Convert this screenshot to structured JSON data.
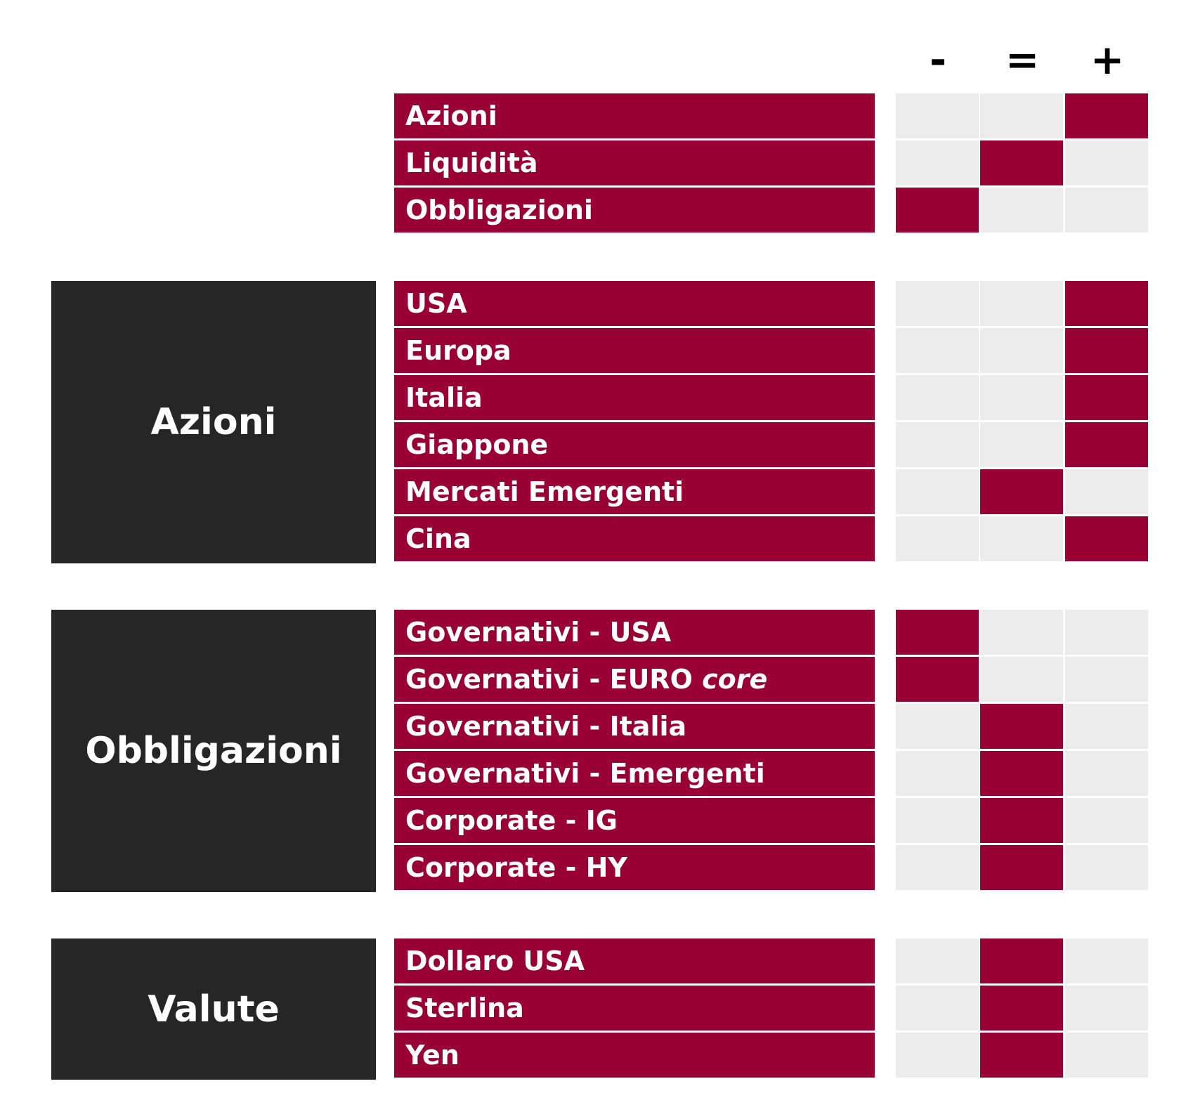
{
  "headers": [
    "-",
    "=",
    "+"
  ],
  "colors": {
    "accent": "#990033",
    "category_bg": "#262626",
    "cell_empty": "#ececec"
  },
  "groups": [
    {
      "category": "",
      "rows": [
        {
          "label": "Azioni",
          "signal": "+"
        },
        {
          "label": "Liquidità",
          "signal": "="
        },
        {
          "label": "Obbligazioni",
          "signal": "-"
        }
      ]
    },
    {
      "category": "Azioni",
      "rows": [
        {
          "label": "USA",
          "signal": "+"
        },
        {
          "label": "Europa",
          "signal": "+"
        },
        {
          "label": "Italia",
          "signal": "+"
        },
        {
          "label": "Giappone",
          "signal": "+"
        },
        {
          "label": "Mercati Emergenti",
          "signal": "="
        },
        {
          "label": "Cina",
          "signal": "+"
        }
      ]
    },
    {
      "category": "Obbligazioni",
      "rows": [
        {
          "label": "Governativi - USA",
          "signal": "-"
        },
        {
          "label": "Governativi - EURO",
          "label_italic": "core",
          "signal": "-"
        },
        {
          "label": "Governativi - Italia",
          "signal": "="
        },
        {
          "label": "Governativi - Emergenti",
          "signal": "="
        },
        {
          "label": "Corporate - IG",
          "signal": "="
        },
        {
          "label": "Corporate - HY",
          "signal": "="
        }
      ]
    },
    {
      "category": "Valute",
      "rows": [
        {
          "label": "Dollaro USA",
          "signal": "="
        },
        {
          "label": "Sterlina",
          "signal": "="
        },
        {
          "label": "Yen",
          "signal": "="
        }
      ]
    }
  ]
}
